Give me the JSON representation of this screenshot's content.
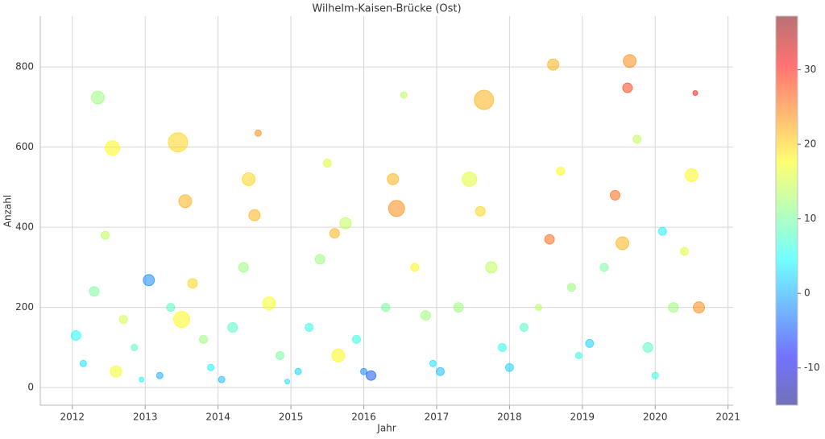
{
  "chart_data": {
    "type": "scatter",
    "title": "Wilhelm-Kaisen-Brücke (Ost)",
    "x_label": "Jahr",
    "y_label": "Anzahl",
    "x": [
      2012.05,
      2012.15,
      2012.3,
      2012.35,
      2012.45,
      2012.55,
      2012.6,
      2012.7,
      2012.85,
      2012.95,
      2013.05,
      2013.2,
      2013.35,
      2013.45,
      2013.5,
      2013.55,
      2013.65,
      2013.8,
      2013.9,
      2014.05,
      2014.2,
      2014.35,
      2014.42,
      2014.5,
      2014.55,
      2014.7,
      2014.85,
      2014.95,
      2015.1,
      2015.25,
      2015.4,
      2015.5,
      2015.6,
      2015.65,
      2015.75,
      2015.9,
      2016.0,
      2016.1,
      2016.3,
      2016.4,
      2016.45,
      2016.55,
      2016.7,
      2016.85,
      2016.95,
      2017.05,
      2017.3,
      2017.45,
      2017.6,
      2017.65,
      2017.75,
      2017.9,
      2018.0,
      2018.2,
      2018.4,
      2018.55,
      2018.6,
      2018.7,
      2018.85,
      2018.95,
      2019.1,
      2019.3,
      2019.45,
      2019.55,
      2019.62,
      2019.65,
      2019.75,
      2019.9,
      2020.0,
      2020.1,
      2020.25,
      2020.4,
      2020.5,
      2020.55,
      2020.6
    ],
    "values": [
      130,
      60,
      240,
      724,
      380,
      598,
      40,
      170,
      100,
      20,
      268,
      30,
      200,
      612,
      170,
      465,
      260,
      120,
      50,
      20,
      150,
      300,
      520,
      430,
      635,
      210,
      80,
      15,
      40,
      150,
      320,
      560,
      385,
      80,
      410,
      120,
      40,
      30,
      200,
      520,
      447,
      730,
      300,
      180,
      60,
      40,
      200,
      520,
      440,
      718,
      300,
      100,
      50,
      150,
      200,
      370,
      806,
      540,
      250,
      80,
      110,
      300,
      480,
      360,
      748,
      815,
      620,
      100,
      30,
      390,
      200,
      340,
      530,
      735,
      200
    ],
    "sizes": [
      6,
      4,
      6,
      8,
      5,
      9,
      7,
      5,
      4,
      3,
      7,
      4,
      5,
      12,
      10,
      8,
      6,
      5,
      4,
      4,
      6,
      6,
      8,
      7,
      4,
      8,
      5,
      3,
      4,
      5,
      6,
      5,
      6,
      8,
      7,
      5,
      4,
      6,
      5,
      7,
      10,
      4,
      5,
      6,
      4,
      5,
      6,
      9,
      6,
      12,
      7,
      5,
      5,
      5,
      4,
      6,
      7,
      5,
      5,
      4,
      5,
      5,
      6,
      8,
      6,
      8,
      5,
      6,
      4,
      5,
      6,
      5,
      8,
      3,
      7
    ],
    "color_values": [
      5,
      3,
      10,
      12,
      14,
      18,
      17,
      15,
      8,
      4,
      -2,
      0,
      8,
      20,
      18,
      22,
      20,
      12,
      4,
      1,
      8,
      12,
      20,
      22,
      24,
      17,
      10,
      3,
      2,
      6,
      12,
      16,
      22,
      18,
      14,
      6,
      -2,
      -5,
      10,
      22,
      24,
      14,
      18,
      12,
      3,
      1,
      12,
      16,
      20,
      22,
      14,
      6,
      2,
      8,
      14,
      26,
      22,
      18,
      12,
      6,
      2,
      10,
      26,
      22,
      28,
      24,
      14,
      8,
      6,
      4,
      12,
      16,
      18,
      30,
      24
    ],
    "xlim": [
      2011.56,
      2021.07
    ],
    "xticks": [
      2012,
      2013,
      2014,
      2015,
      2016,
      2017,
      2018,
      2019,
      2020,
      2021
    ],
    "ylim": [
      -44,
      927
    ],
    "yticks": [
      0,
      200,
      400,
      600,
      800
    ],
    "clim": [
      -15,
      37.2
    ],
    "cticks": [
      -10,
      0,
      10,
      20,
      30
    ],
    "colormap": "jet",
    "grid": true
  }
}
